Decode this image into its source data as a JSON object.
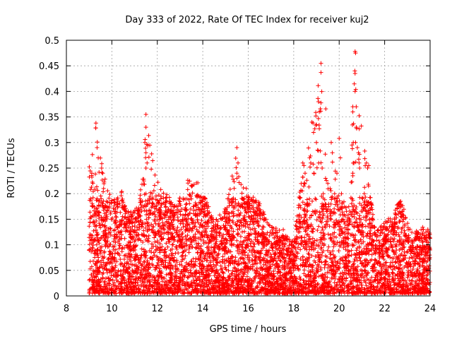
{
  "chart_data": {
    "type": "scatter",
    "title": "Day 333 of 2022, Rate Of TEC Index for receiver kuj2",
    "xlabel": "GPS time / hours",
    "ylabel": "ROTI / TECUs",
    "xlim": [
      8,
      24
    ],
    "ylim": [
      0,
      0.5
    ],
    "xticks": [
      8,
      10,
      12,
      14,
      16,
      18,
      20,
      22,
      24
    ],
    "yticks": [
      0,
      0.05,
      0.1,
      0.15,
      0.2,
      0.25,
      0.3,
      0.35,
      0.4,
      0.45,
      0.5
    ],
    "grid": true,
    "marker": "+",
    "color": "#ff0000",
    "series": [
      {
        "name": "ROTI",
        "envelope": [
          [
            9.0,
            0.28
          ],
          [
            9.3,
            0.34
          ],
          [
            9.6,
            0.25
          ],
          [
            10.0,
            0.19
          ],
          [
            10.4,
            0.21
          ],
          [
            10.8,
            0.16
          ],
          [
            11.2,
            0.17
          ],
          [
            11.5,
            0.355
          ],
          [
            11.9,
            0.24
          ],
          [
            12.3,
            0.21
          ],
          [
            12.8,
            0.17
          ],
          [
            13.5,
            0.245
          ],
          [
            14.0,
            0.21
          ],
          [
            14.5,
            0.14
          ],
          [
            15.0,
            0.17
          ],
          [
            15.5,
            0.29
          ],
          [
            16.0,
            0.195
          ],
          [
            16.5,
            0.18
          ],
          [
            17.0,
            0.13
          ],
          [
            17.5,
            0.13
          ],
          [
            18.0,
            0.1
          ],
          [
            18.4,
            0.26
          ],
          [
            18.8,
            0.34
          ],
          [
            19.2,
            0.455
          ],
          [
            19.6,
            0.31
          ],
          [
            20.0,
            0.2
          ],
          [
            20.4,
            0.16
          ],
          [
            20.7,
            0.48
          ],
          [
            21.2,
            0.26
          ],
          [
            21.6,
            0.12
          ],
          [
            22.0,
            0.14
          ],
          [
            22.7,
            0.185
          ],
          [
            23.2,
            0.12
          ],
          [
            23.7,
            0.13
          ],
          [
            24.0,
            0.12
          ]
        ],
        "outliers": [
          [
            9.3,
            0.338
          ],
          [
            9.35,
            0.29
          ],
          [
            9.4,
            0.27
          ],
          [
            9.55,
            0.25
          ],
          [
            9.6,
            0.24
          ],
          [
            11.5,
            0.355
          ],
          [
            11.5,
            0.33
          ],
          [
            11.45,
            0.3
          ],
          [
            11.5,
            0.28
          ],
          [
            11.55,
            0.26
          ],
          [
            11.5,
            0.25
          ],
          [
            11.5,
            0.2
          ],
          [
            15.5,
            0.29
          ],
          [
            15.55,
            0.26
          ],
          [
            15.5,
            0.24
          ],
          [
            15.5,
            0.23
          ],
          [
            16.0,
            0.195
          ],
          [
            16.05,
            0.18
          ],
          [
            16.1,
            0.165
          ],
          [
            16.5,
            0.18
          ],
          [
            18.4,
            0.26
          ],
          [
            18.45,
            0.255
          ],
          [
            18.5,
            0.24
          ],
          [
            18.8,
            0.34
          ],
          [
            18.85,
            0.338
          ],
          [
            18.7,
            0.27
          ],
          [
            18.75,
            0.26
          ],
          [
            19.0,
            0.3
          ],
          [
            19.05,
            0.285
          ],
          [
            19.1,
            0.26
          ],
          [
            19.2,
            0.455
          ],
          [
            19.2,
            0.437
          ],
          [
            19.25,
            0.25
          ],
          [
            19.3,
            0.2
          ],
          [
            19.4,
            0.23
          ],
          [
            19.5,
            0.22
          ],
          [
            19.6,
            0.21
          ],
          [
            19.65,
            0.3
          ],
          [
            19.7,
            0.28
          ],
          [
            19.8,
            0.2
          ],
          [
            19.9,
            0.24
          ],
          [
            20.0,
            0.308
          ],
          [
            20.05,
            0.27
          ],
          [
            20.1,
            0.2
          ],
          [
            20.6,
            0.37
          ],
          [
            20.6,
            0.36
          ],
          [
            20.62,
            0.3
          ],
          [
            20.65,
            0.26
          ],
          [
            20.6,
            0.24
          ],
          [
            20.6,
            0.235
          ],
          [
            20.7,
            0.478
          ],
          [
            20.72,
            0.475
          ],
          [
            20.7,
            0.435
          ],
          [
            20.7,
            0.4
          ],
          [
            20.75,
            0.37
          ],
          [
            20.75,
            0.33
          ],
          [
            20.72,
            0.3
          ],
          [
            20.8,
            0.29
          ],
          [
            20.85,
            0.28
          ],
          [
            20.9,
            0.25
          ],
          [
            21.2,
            0.26
          ],
          [
            21.25,
            0.25
          ],
          [
            21.3,
            0.255
          ],
          [
            22.7,
            0.185
          ],
          [
            22.7,
            0.175
          ],
          [
            22.75,
            0.155
          ],
          [
            22.6,
            0.16
          ],
          [
            23.9,
            0.13
          ],
          [
            23.95,
            0.12
          ],
          [
            23.7,
            0.13
          ]
        ]
      }
    ]
  }
}
